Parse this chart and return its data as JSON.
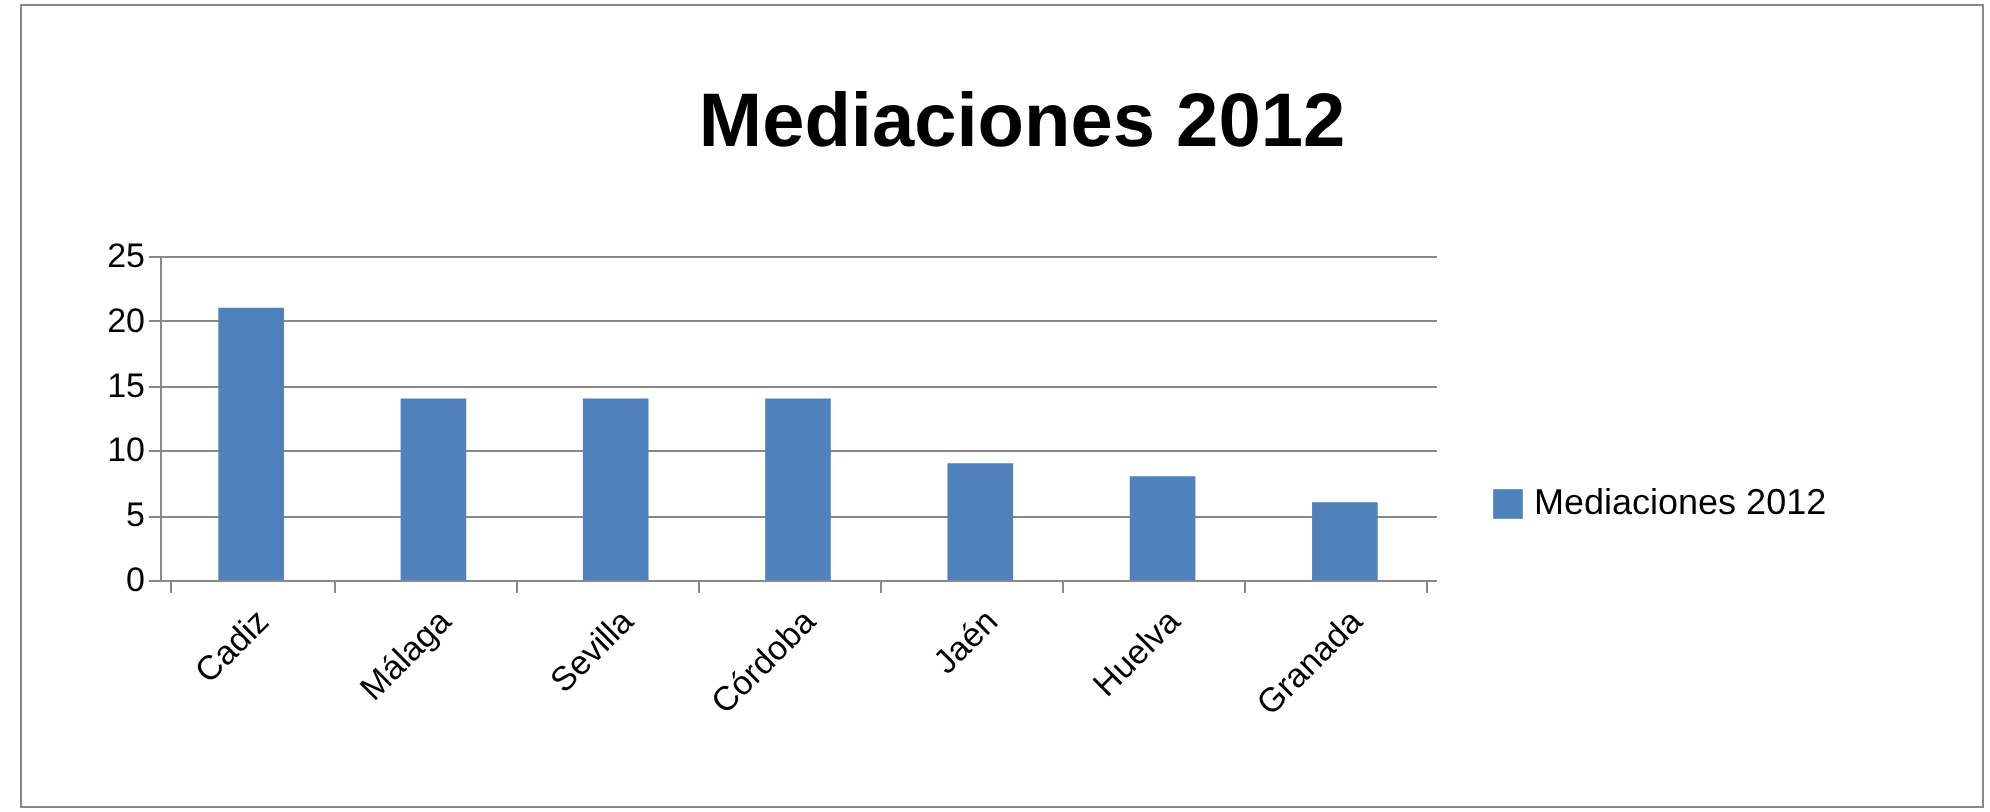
{
  "chart_data": {
    "type": "bar",
    "title": "Mediaciones 2012",
    "categories": [
      "Cadiz",
      "Málaga",
      "Sevilla",
      "Córdoba",
      "Jaén",
      "Huelva",
      "Granada"
    ],
    "series": [
      {
        "name": "Mediaciones 2012",
        "color": "#4f81bd",
        "values": [
          21,
          14,
          14,
          14,
          9,
          8,
          6
        ]
      }
    ],
    "ylim": [
      0,
      25
    ],
    "yticks": [
      0,
      5,
      10,
      15,
      20,
      25
    ],
    "grid": "y",
    "legend": "right"
  }
}
